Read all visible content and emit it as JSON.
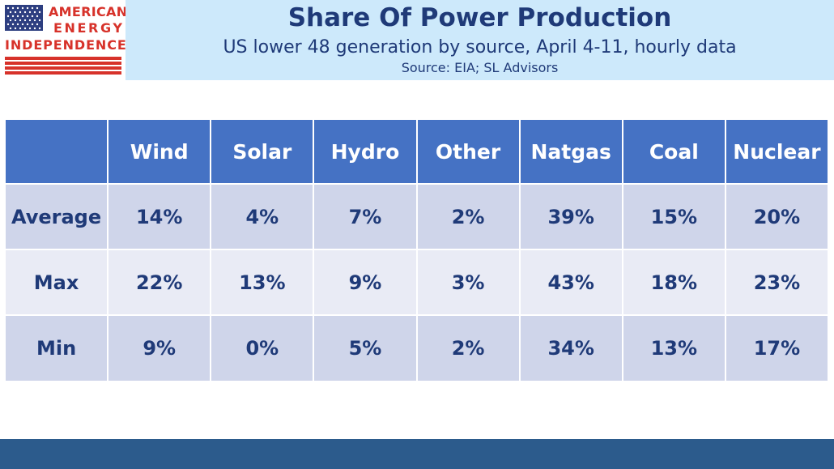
{
  "logo": {
    "line1": "AMERICAN",
    "line2": "ENERGY",
    "line3": "INDEPENDENCE",
    "colors": {
      "red": "#d7322a",
      "blue": "#2d3e80"
    }
  },
  "header": {
    "title": "Share Of Power Production",
    "subtitle": "US lower 48 generation by source, April 4-11, hourly data",
    "source": "Source: EIA; SL Advisors"
  },
  "chart_data": {
    "type": "table",
    "columns": [
      "Wind",
      "Solar",
      "Hydro",
      "Other",
      "Natgas",
      "Coal",
      "Nuclear"
    ],
    "rows": [
      {
        "label": "Average",
        "values": [
          "14%",
          "4%",
          "7%",
          "2%",
          "39%",
          "15%",
          "20%"
        ]
      },
      {
        "label": "Max",
        "values": [
          "22%",
          "13%",
          "9%",
          "3%",
          "43%",
          "18%",
          "23%"
        ]
      },
      {
        "label": "Min",
        "values": [
          "9%",
          "0%",
          "5%",
          "2%",
          "34%",
          "13%",
          "17%"
        ]
      }
    ]
  },
  "colors": {
    "header_band": "#cde9fb",
    "title_text": "#1f3a78",
    "table_header": "#4572c4",
    "row_dark": "#cfd5ea",
    "row_light": "#e9ebf5",
    "footer_band": "#2c5b8c"
  }
}
